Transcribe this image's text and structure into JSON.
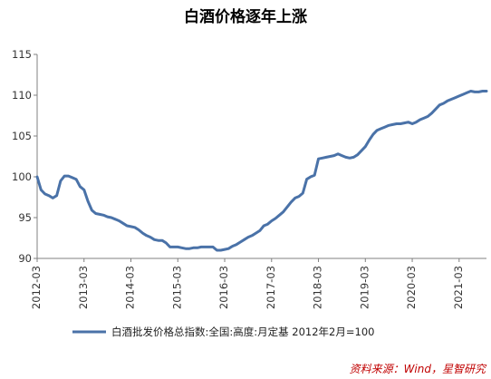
{
  "chart_data": {
    "type": "line",
    "title": "白酒价格逐年上涨",
    "xlabel": "",
    "ylabel": "",
    "ylim": [
      90,
      115
    ],
    "yticks": [
      "90",
      "95",
      "100",
      "105",
      "110",
      "115"
    ],
    "xlim": [
      "2012-03",
      "2021-10"
    ],
    "xticks": [
      "2012-03",
      "2013-03",
      "2014-03",
      "2015-03",
      "2016-03",
      "2017-03",
      "2018-03",
      "2019-03",
      "2020-03",
      "2021-03"
    ],
    "grid": false,
    "legend_position": "bottom",
    "series": [
      {
        "name": "白酒批发价格总指数:全国:高度:月定基 2012年2月=100",
        "color": "#4a72a8",
        "x": [
          "2012-03",
          "2012-04",
          "2012-05",
          "2012-06",
          "2012-07",
          "2012-08",
          "2012-09",
          "2012-10",
          "2012-11",
          "2012-12",
          "2013-01",
          "2013-02",
          "2013-03",
          "2013-04",
          "2013-05",
          "2013-06",
          "2013-07",
          "2013-08",
          "2013-09",
          "2013-10",
          "2013-11",
          "2013-12",
          "2014-01",
          "2014-02",
          "2014-03",
          "2014-04",
          "2014-05",
          "2014-06",
          "2014-07",
          "2014-08",
          "2014-09",
          "2014-10",
          "2014-11",
          "2014-12",
          "2015-01",
          "2015-02",
          "2015-03",
          "2015-04",
          "2015-05",
          "2015-06",
          "2015-07",
          "2015-08",
          "2015-09",
          "2015-10",
          "2015-11",
          "2015-12",
          "2016-01",
          "2016-02",
          "2016-03",
          "2016-04",
          "2016-05",
          "2016-06",
          "2016-07",
          "2016-08",
          "2016-09",
          "2016-10",
          "2016-11",
          "2016-12",
          "2017-01",
          "2017-02",
          "2017-03",
          "2017-04",
          "2017-05",
          "2017-06",
          "2017-07",
          "2017-08",
          "2017-09",
          "2017-10",
          "2017-11",
          "2017-12",
          "2018-01",
          "2018-02",
          "2018-03",
          "2018-04",
          "2018-05",
          "2018-06",
          "2018-07",
          "2018-08",
          "2018-09",
          "2018-10",
          "2018-11",
          "2018-12",
          "2019-01",
          "2019-02",
          "2019-03",
          "2019-04",
          "2019-05",
          "2019-06",
          "2019-07",
          "2019-08",
          "2019-09",
          "2019-10",
          "2019-11",
          "2019-12",
          "2020-01",
          "2020-02",
          "2020-03",
          "2020-04",
          "2020-05",
          "2020-06",
          "2020-07",
          "2020-08",
          "2020-09",
          "2020-10",
          "2020-11",
          "2020-12",
          "2021-01",
          "2021-02",
          "2021-03",
          "2021-04",
          "2021-05",
          "2021-06",
          "2021-07",
          "2021-08",
          "2021-09",
          "2021-10"
        ],
        "values": [
          100.0,
          98.4,
          97.9,
          97.7,
          97.4,
          97.7,
          99.5,
          100.1,
          100.1,
          99.9,
          99.7,
          98.8,
          98.4,
          97.0,
          95.9,
          95.5,
          95.4,
          95.3,
          95.1,
          95.0,
          94.8,
          94.6,
          94.3,
          94.0,
          93.9,
          93.8,
          93.5,
          93.1,
          92.8,
          92.6,
          92.3,
          92.2,
          92.2,
          91.9,
          91.4,
          91.4,
          91.4,
          91.3,
          91.2,
          91.2,
          91.3,
          91.3,
          91.4,
          91.4,
          91.4,
          91.4,
          91.0,
          91.0,
          91.1,
          91.2,
          91.5,
          91.7,
          92.0,
          92.3,
          92.6,
          92.8,
          93.1,
          93.4,
          94.0,
          94.2,
          94.6,
          94.9,
          95.3,
          95.7,
          96.3,
          96.9,
          97.4,
          97.6,
          98.0,
          99.7,
          100.0,
          100.2,
          102.2,
          102.3,
          102.4,
          102.5,
          102.6,
          102.8,
          102.6,
          102.4,
          102.3,
          102.4,
          102.7,
          103.2,
          103.7,
          104.5,
          105.2,
          105.7,
          105.9,
          106.1,
          106.3,
          106.4,
          106.5,
          106.5,
          106.6,
          106.7,
          106.5,
          106.7,
          107.0,
          107.2,
          107.4,
          107.8,
          108.3,
          108.8,
          109.0,
          109.3,
          109.5,
          109.7,
          109.9,
          110.1,
          110.3,
          110.5,
          110.4,
          110.4,
          110.5,
          110.5
        ]
      }
    ]
  },
  "source": "资料来源：Wind，星智研究"
}
